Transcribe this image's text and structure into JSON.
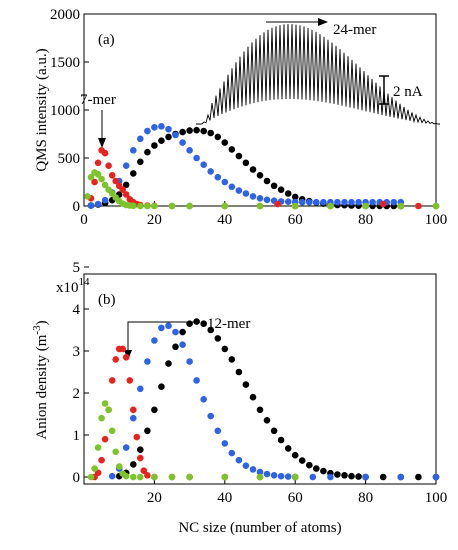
{
  "colors": {
    "black": "#000000",
    "blue": "#2f63e6",
    "red": "#e8231f",
    "green": "#7cc42a",
    "frame": "#000000"
  },
  "chart_data": [
    {
      "type": "scatter",
      "panel_label": "(a)",
      "ylabel": "QMS intensity (a.u.)",
      "xlabel": "",
      "xlim": [
        0,
        100
      ],
      "ylim": [
        0,
        2000
      ],
      "xticks": [
        "0",
        "20",
        "40",
        "60",
        "80",
        "100"
      ],
      "yticks": [
        "0",
        "500",
        "1000",
        "1500",
        "2000"
      ],
      "grid": false,
      "annotations": {
        "heptamer": "7-mer",
        "tetracosamer": "24-mer",
        "scale_bar": "2 nA"
      },
      "series": [
        {
          "color": "black",
          "x": [
            2,
            4,
            6,
            8,
            10,
            12,
            14,
            16,
            18,
            20,
            22,
            24,
            26,
            28,
            30,
            32,
            34,
            36,
            38,
            40,
            42,
            44,
            46,
            48,
            50,
            52,
            54,
            56,
            58,
            60,
            62,
            64,
            66,
            68,
            70,
            72,
            74,
            76,
            78,
            80,
            82,
            84,
            86,
            88,
            90
          ],
          "y": [
            5,
            15,
            30,
            60,
            120,
            220,
            340,
            460,
            560,
            630,
            680,
            720,
            750,
            770,
            785,
            790,
            780,
            760,
            720,
            660,
            590,
            520,
            450,
            380,
            320,
            260,
            210,
            170,
            130,
            95,
            70,
            50,
            35,
            25,
            15,
            10,
            8,
            5,
            3,
            2,
            1,
            1,
            0,
            0,
            0
          ]
        },
        {
          "color": "blue",
          "x": [
            2,
            4,
            6,
            8,
            10,
            12,
            14,
            16,
            18,
            20,
            22,
            24,
            26,
            28,
            30,
            32,
            34,
            36,
            38,
            40,
            42,
            44,
            46,
            48,
            50,
            52,
            54,
            56,
            58,
            60,
            62,
            64,
            66,
            68,
            70,
            72,
            74,
            76,
            78,
            80,
            82,
            84,
            86,
            88,
            90
          ],
          "y": [
            5,
            20,
            60,
            140,
            260,
            420,
            580,
            700,
            780,
            820,
            830,
            800,
            740,
            660,
            580,
            500,
            430,
            360,
            300,
            250,
            200,
            160,
            130,
            100,
            80,
            65,
            55,
            48,
            45,
            42,
            40,
            40,
            40,
            40,
            40,
            40,
            40,
            40,
            40,
            40,
            40,
            40,
            40,
            40,
            40
          ]
        },
        {
          "color": "red",
          "x": [
            2,
            3,
            4,
            5,
            6,
            7,
            8,
            9,
            10,
            11,
            12,
            13,
            14,
            15,
            16,
            18,
            20,
            25,
            30,
            40,
            50,
            55,
            60,
            70,
            80,
            85,
            90,
            95,
            100
          ],
          "y": [
            80,
            250,
            450,
            580,
            550,
            420,
            320,
            260,
            210,
            170,
            120,
            70,
            40,
            20,
            10,
            5,
            2,
            0,
            0,
            0,
            0,
            20,
            0,
            0,
            0,
            20,
            0,
            0,
            0
          ]
        },
        {
          "color": "green",
          "x": [
            1,
            2,
            3,
            4,
            5,
            6,
            7,
            8,
            9,
            10,
            11,
            12,
            13,
            14,
            16,
            18,
            20,
            25,
            30,
            40,
            50,
            60,
            70,
            80,
            90,
            100
          ],
          "y": [
            100,
            300,
            350,
            330,
            280,
            220,
            170,
            130,
            90,
            50,
            25,
            10,
            5,
            2,
            0,
            0,
            0,
            0,
            0,
            0,
            0,
            0,
            0,
            0,
            0,
            0
          ]
        }
      ]
    },
    {
      "type": "scatter",
      "panel_label": "(b)",
      "ylabel": "Anion density (m",
      "ylabel_sup": "-3",
      "ylabel_close": ")",
      "xlabel": "NC size (number of atoms)",
      "xlim": [
        0,
        100
      ],
      "ylim": [
        0,
        5
      ],
      "y_multiplier": "x10",
      "y_multiplier_exp": "14",
      "xticks": [
        "20",
        "40",
        "60",
        "80",
        "100"
      ],
      "yticks": [
        "0",
        "1",
        "2",
        "3",
        "4",
        "5"
      ],
      "grid": false,
      "annotations": {
        "dodecamer": "12-mer"
      },
      "series": [
        {
          "color": "black",
          "x": [
            10,
            12,
            14,
            16,
            18,
            20,
            22,
            24,
            26,
            28,
            30,
            32,
            34,
            36,
            38,
            40,
            42,
            44,
            46,
            48,
            50,
            52,
            54,
            56,
            58,
            60,
            62,
            64,
            66,
            68,
            70,
            72,
            74,
            76,
            78,
            80,
            85,
            90,
            95,
            100
          ],
          "y": [
            0.02,
            0.1,
            0.3,
            0.65,
            1.1,
            1.6,
            2.15,
            2.7,
            3.1,
            3.45,
            3.65,
            3.7,
            3.65,
            3.5,
            3.3,
            3.05,
            2.8,
            2.5,
            2.2,
            1.9,
            1.6,
            1.35,
            1.1,
            0.88,
            0.68,
            0.52,
            0.39,
            0.28,
            0.2,
            0.14,
            0.09,
            0.06,
            0.04,
            0.02,
            0.01,
            0.0,
            0.0,
            0.0,
            0.0,
            0.0
          ]
        },
        {
          "color": "blue",
          "x": [
            8,
            10,
            12,
            14,
            16,
            18,
            20,
            22,
            24,
            26,
            28,
            30,
            32,
            34,
            36,
            38,
            40,
            42,
            44,
            46,
            48,
            50,
            52,
            54,
            56,
            58,
            60,
            65,
            70,
            80,
            90,
            100
          ],
          "y": [
            0.02,
            0.2,
            0.7,
            1.4,
            2.1,
            2.75,
            3.25,
            3.55,
            3.6,
            3.45,
            3.15,
            2.75,
            2.3,
            1.85,
            1.45,
            1.1,
            0.8,
            0.57,
            0.4,
            0.27,
            0.18,
            0.12,
            0.07,
            0.04,
            0.02,
            0.01,
            0.0,
            0.0,
            0.0,
            0.0,
            0.0,
            0.0
          ]
        },
        {
          "color": "red",
          "x": [
            3,
            4,
            5,
            6,
            7,
            8,
            9,
            10,
            11,
            12,
            13,
            14,
            15,
            16,
            17,
            18,
            20,
            25,
            30,
            40,
            50,
            60
          ],
          "y": [
            0.0,
            0.1,
            0.4,
            0.9,
            1.6,
            2.3,
            2.8,
            3.05,
            3.05,
            2.85,
            2.3,
            1.6,
            0.95,
            0.45,
            0.15,
            0.04,
            0.0,
            0.0,
            0.0,
            0.0,
            0.0,
            0.0
          ]
        },
        {
          "color": "green",
          "x": [
            2,
            3,
            4,
            5,
            6,
            7,
            8,
            9,
            10,
            11,
            12,
            14,
            16,
            20,
            25,
            30,
            40,
            50,
            60
          ],
          "y": [
            0.0,
            0.2,
            0.7,
            1.4,
            1.75,
            1.6,
            1.1,
            0.6,
            0.25,
            0.08,
            0.02,
            0.0,
            0.0,
            0.0,
            0.0,
            0.0,
            0.0,
            0.0,
            0.0
          ]
        }
      ]
    }
  ]
}
